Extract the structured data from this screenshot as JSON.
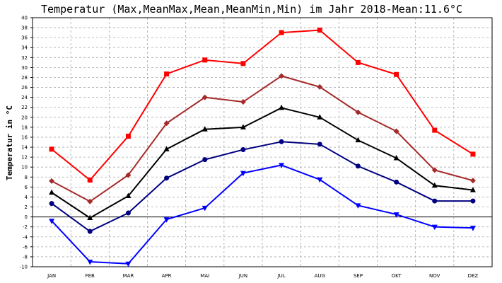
{
  "chart_data": {
    "type": "line",
    "title": "Temperatur (Max,MeanMax,Mean,MeanMin,Min) im Jahr 2018-Mean:11.6°C",
    "ylabel": "Temperatur in °C",
    "xlabel": "",
    "categories": [
      "JAN",
      "FEB",
      "MAR",
      "APR",
      "MAI",
      "JUN",
      "JUL",
      "AUG",
      "SEP",
      "OKT",
      "NOV",
      "DEZ"
    ],
    "ylim": [
      -10,
      40
    ],
    "yticks": [
      -10,
      -8,
      -6,
      -4,
      -2,
      0,
      2,
      4,
      6,
      8,
      10,
      12,
      14,
      16,
      18,
      20,
      22,
      24,
      26,
      28,
      30,
      32,
      34,
      36,
      38,
      40
    ],
    "grid": true,
    "series": [
      {
        "color": "#ff0000",
        "marker": "square",
        "values": [
          13.6,
          7.4,
          16.2,
          28.7,
          31.5,
          30.8,
          37.0,
          37.5,
          31.0,
          28.6,
          17.4,
          12.6
        ]
      },
      {
        "color": "#a52a2a",
        "marker": "diamond",
        "values": [
          7.2,
          3.1,
          8.4,
          18.8,
          24.0,
          23.1,
          28.3,
          26.1,
          21.0,
          17.2,
          9.4,
          7.3
        ]
      },
      {
        "color": "#000000",
        "marker": "triangle-up",
        "values": [
          4.9,
          -0.2,
          4.2,
          13.6,
          17.6,
          18.0,
          21.9,
          20.0,
          15.4,
          11.8,
          6.3,
          5.4
        ]
      },
      {
        "color": "#000080",
        "marker": "circle",
        "values": [
          2.7,
          -2.9,
          0.8,
          7.8,
          11.5,
          13.5,
          15.1,
          14.6,
          10.2,
          7.0,
          3.2,
          3.2
        ]
      },
      {
        "color": "#0000ff",
        "marker": "triangle-down",
        "values": [
          -0.8,
          -9.0,
          -9.4,
          -0.5,
          1.8,
          8.8,
          10.4,
          7.5,
          2.3,
          0.5,
          -2.0,
          -2.2
        ]
      }
    ]
  }
}
